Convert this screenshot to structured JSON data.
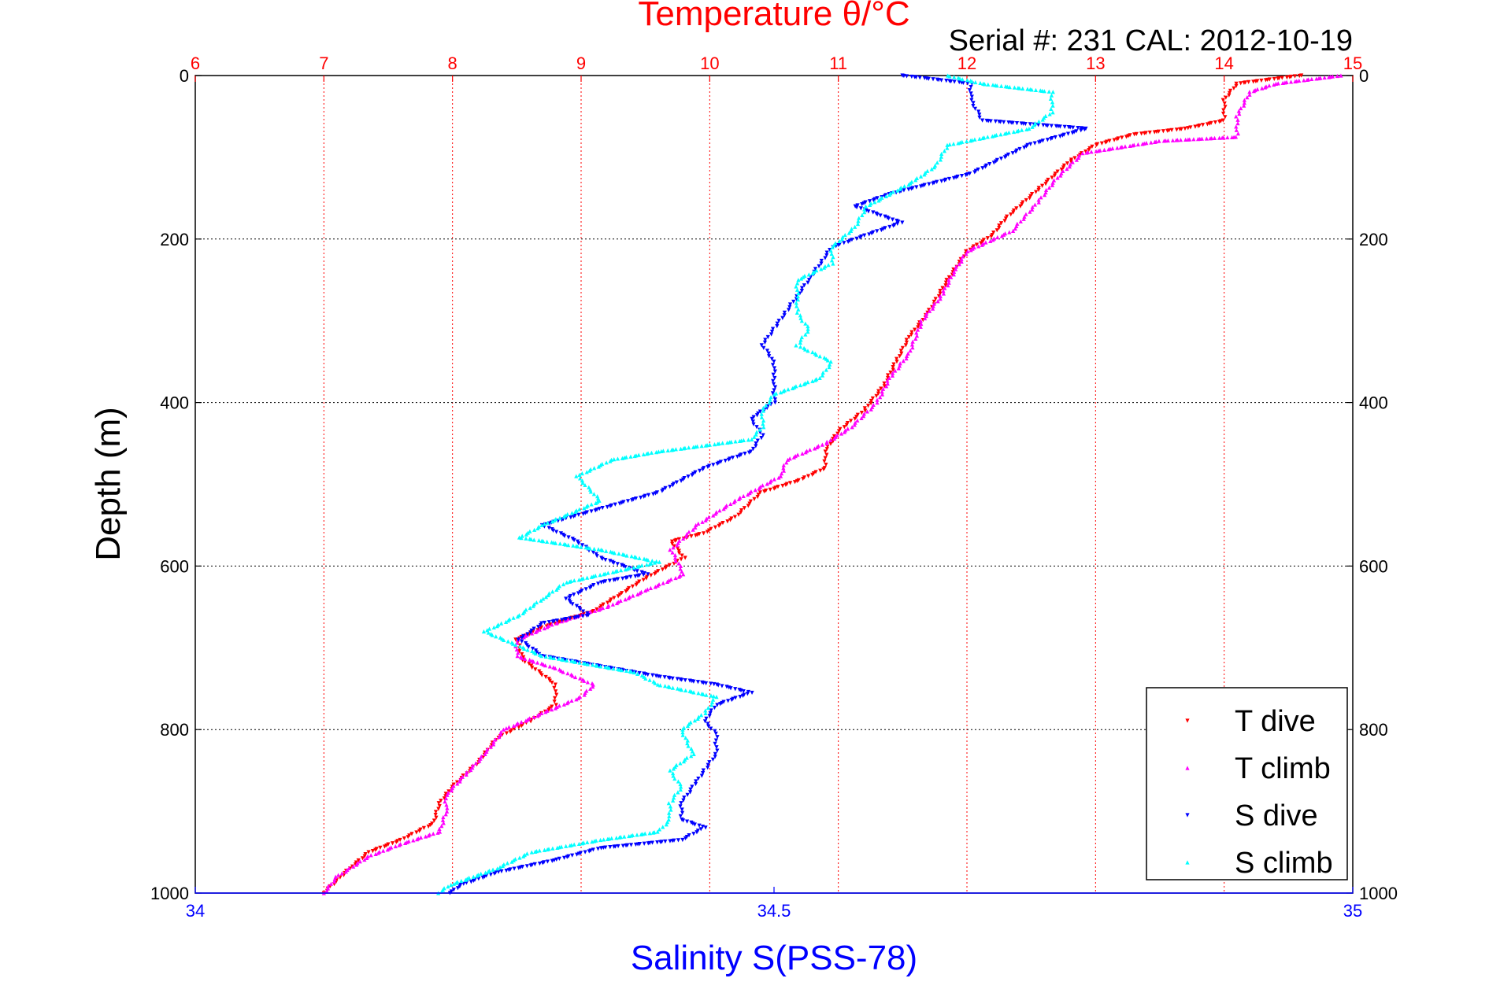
{
  "chart_data": {
    "type": "scatter",
    "title": "Temperature θ/°C",
    "subtitle": "Serial #: 231  CAL: 2012-10-19",
    "top_axis": {
      "label": "Temperature θ/°C",
      "range": [
        6,
        15
      ],
      "ticks": [
        "6",
        "7",
        "8",
        "9",
        "10",
        "11",
        "12",
        "13",
        "14",
        "15"
      ],
      "color": "#ff0000"
    },
    "bottom_axis": {
      "label": "Salinity S(PSS-78)",
      "range": [
        34,
        35
      ],
      "ticks": [
        "34",
        "34.5",
        "35"
      ],
      "color": "#0000ff"
    },
    "y_axis": {
      "label": "Depth (m)",
      "range": [
        0,
        1000
      ],
      "inverted": true,
      "ticks": [
        "0",
        "200",
        "400",
        "600",
        "800",
        "1000"
      ]
    },
    "grid": true,
    "legend_position": "bottom-right",
    "series": [
      {
        "name": "T dive",
        "axis": "temperature",
        "color": "#ff0000",
        "marker": "triangle-down",
        "points": [
          [
            14.6,
            0
          ],
          [
            14.1,
            10
          ],
          [
            14.0,
            30
          ],
          [
            14.0,
            55
          ],
          [
            13.7,
            65
          ],
          [
            13.3,
            72
          ],
          [
            13.0,
            85
          ],
          [
            12.8,
            105
          ],
          [
            12.55,
            140
          ],
          [
            12.3,
            175
          ],
          [
            12.2,
            195
          ],
          [
            12.0,
            215
          ],
          [
            11.85,
            250
          ],
          [
            11.7,
            290
          ],
          [
            11.55,
            320
          ],
          [
            11.45,
            350
          ],
          [
            11.35,
            380
          ],
          [
            11.2,
            410
          ],
          [
            11.0,
            435
          ],
          [
            10.9,
            460
          ],
          [
            10.9,
            480
          ],
          [
            10.7,
            495
          ],
          [
            10.4,
            510
          ],
          [
            10.2,
            540
          ],
          [
            9.95,
            560
          ],
          [
            9.7,
            570
          ],
          [
            9.8,
            590
          ],
          [
            9.5,
            615
          ],
          [
            9.3,
            635
          ],
          [
            9.1,
            655
          ],
          [
            8.7,
            675
          ],
          [
            8.5,
            690
          ],
          [
            8.55,
            715
          ],
          [
            8.8,
            745
          ],
          [
            8.8,
            770
          ],
          [
            8.6,
            790
          ],
          [
            8.35,
            810
          ],
          [
            8.2,
            840
          ],
          [
            8.0,
            870
          ],
          [
            7.9,
            890
          ],
          [
            7.85,
            915
          ],
          [
            7.6,
            935
          ],
          [
            7.35,
            950
          ],
          [
            7.2,
            970
          ],
          [
            7.0,
            1000
          ]
        ]
      },
      {
        "name": "T climb",
        "axis": "temperature",
        "color": "#ff00ff",
        "marker": "triangle-up",
        "points": [
          [
            14.9,
            0
          ],
          [
            14.4,
            10
          ],
          [
            14.2,
            20
          ],
          [
            14.1,
            50
          ],
          [
            14.1,
            75
          ],
          [
            13.5,
            80
          ],
          [
            12.9,
            95
          ],
          [
            12.7,
            125
          ],
          [
            12.55,
            155
          ],
          [
            12.35,
            190
          ],
          [
            12.0,
            215
          ],
          [
            11.9,
            240
          ],
          [
            11.8,
            270
          ],
          [
            11.65,
            300
          ],
          [
            11.55,
            340
          ],
          [
            11.4,
            370
          ],
          [
            11.3,
            400
          ],
          [
            11.1,
            430
          ],
          [
            10.9,
            450
          ],
          [
            10.6,
            470
          ],
          [
            10.55,
            490
          ],
          [
            10.2,
            520
          ],
          [
            9.9,
            550
          ],
          [
            9.7,
            580
          ],
          [
            9.8,
            610
          ],
          [
            9.5,
            630
          ],
          [
            9.2,
            650
          ],
          [
            8.8,
            670
          ],
          [
            8.5,
            690
          ],
          [
            8.5,
            710
          ],
          [
            8.8,
            725
          ],
          [
            9.1,
            745
          ],
          [
            9.0,
            760
          ],
          [
            8.7,
            780
          ],
          [
            8.4,
            800
          ],
          [
            8.25,
            830
          ],
          [
            8.1,
            855
          ],
          [
            7.95,
            880
          ],
          [
            7.95,
            900
          ],
          [
            7.9,
            925
          ],
          [
            7.6,
            940
          ],
          [
            7.35,
            955
          ],
          [
            7.1,
            980
          ],
          [
            7.0,
            1000
          ]
        ]
      },
      {
        "name": "S dive",
        "axis": "salinity",
        "color": "#0000ff",
        "marker": "triangle-down",
        "points": [
          [
            34.61,
            0
          ],
          [
            34.67,
            10
          ],
          [
            34.67,
            30
          ],
          [
            34.68,
            55
          ],
          [
            34.77,
            65
          ],
          [
            34.72,
            85
          ],
          [
            34.67,
            120
          ],
          [
            34.6,
            145
          ],
          [
            34.57,
            160
          ],
          [
            34.61,
            180
          ],
          [
            34.55,
            210
          ],
          [
            34.54,
            230
          ],
          [
            34.53,
            250
          ],
          [
            34.52,
            270
          ],
          [
            34.51,
            290
          ],
          [
            34.5,
            310
          ],
          [
            34.49,
            330
          ],
          [
            34.5,
            350
          ],
          [
            34.5,
            370
          ],
          [
            34.5,
            400
          ],
          [
            34.48,
            420
          ],
          [
            34.49,
            440
          ],
          [
            34.48,
            460
          ],
          [
            34.44,
            480
          ],
          [
            34.4,
            510
          ],
          [
            34.35,
            530
          ],
          [
            34.3,
            550
          ],
          [
            34.33,
            570
          ],
          [
            34.35,
            590
          ],
          [
            34.39,
            610
          ],
          [
            34.35,
            620
          ],
          [
            34.32,
            640
          ],
          [
            34.34,
            660
          ],
          [
            34.3,
            670
          ],
          [
            34.28,
            690
          ],
          [
            34.3,
            710
          ],
          [
            34.4,
            735
          ],
          [
            34.45,
            745
          ],
          [
            34.48,
            755
          ],
          [
            34.45,
            770
          ],
          [
            34.44,
            790
          ],
          [
            34.45,
            805
          ],
          [
            34.45,
            830
          ],
          [
            34.44,
            850
          ],
          [
            34.43,
            870
          ],
          [
            34.42,
            890
          ],
          [
            34.42,
            910
          ],
          [
            34.44,
            920
          ],
          [
            34.42,
            935
          ],
          [
            34.35,
            945
          ],
          [
            34.31,
            960
          ],
          [
            34.26,
            975
          ],
          [
            34.23,
            990
          ],
          [
            34.22,
            1000
          ]
        ]
      },
      {
        "name": "S climb",
        "axis": "salinity",
        "color": "#00ffff",
        "marker": "triangle-up",
        "points": [
          [
            34.65,
            0
          ],
          [
            34.68,
            10
          ],
          [
            34.74,
            20
          ],
          [
            34.74,
            45
          ],
          [
            34.72,
            65
          ],
          [
            34.65,
            85
          ],
          [
            34.64,
            110
          ],
          [
            34.62,
            130
          ],
          [
            34.58,
            160
          ],
          [
            34.57,
            185
          ],
          [
            34.55,
            210
          ],
          [
            34.55,
            230
          ],
          [
            34.52,
            250
          ],
          [
            34.52,
            270
          ],
          [
            34.52,
            290
          ],
          [
            34.53,
            310
          ],
          [
            34.52,
            330
          ],
          [
            34.55,
            350
          ],
          [
            34.54,
            370
          ],
          [
            34.5,
            390
          ],
          [
            34.49,
            410
          ],
          [
            34.49,
            430
          ],
          [
            34.48,
            445
          ],
          [
            34.4,
            460
          ],
          [
            34.36,
            470
          ],
          [
            34.33,
            490
          ],
          [
            34.35,
            520
          ],
          [
            34.3,
            550
          ],
          [
            34.28,
            565
          ],
          [
            34.35,
            580
          ],
          [
            34.4,
            595
          ],
          [
            34.32,
            620
          ],
          [
            34.3,
            640
          ],
          [
            34.28,
            660
          ],
          [
            34.25,
            680
          ],
          [
            34.3,
            710
          ],
          [
            34.38,
            730
          ],
          [
            34.4,
            745
          ],
          [
            34.45,
            760
          ],
          [
            34.44,
            780
          ],
          [
            34.42,
            800
          ],
          [
            34.43,
            830
          ],
          [
            34.41,
            850
          ],
          [
            34.42,
            870
          ],
          [
            34.41,
            890
          ],
          [
            34.41,
            910
          ],
          [
            34.4,
            925
          ],
          [
            34.35,
            935
          ],
          [
            34.29,
            950
          ],
          [
            34.26,
            970
          ],
          [
            34.22,
            990
          ],
          [
            34.21,
            1000
          ]
        ]
      }
    ]
  }
}
